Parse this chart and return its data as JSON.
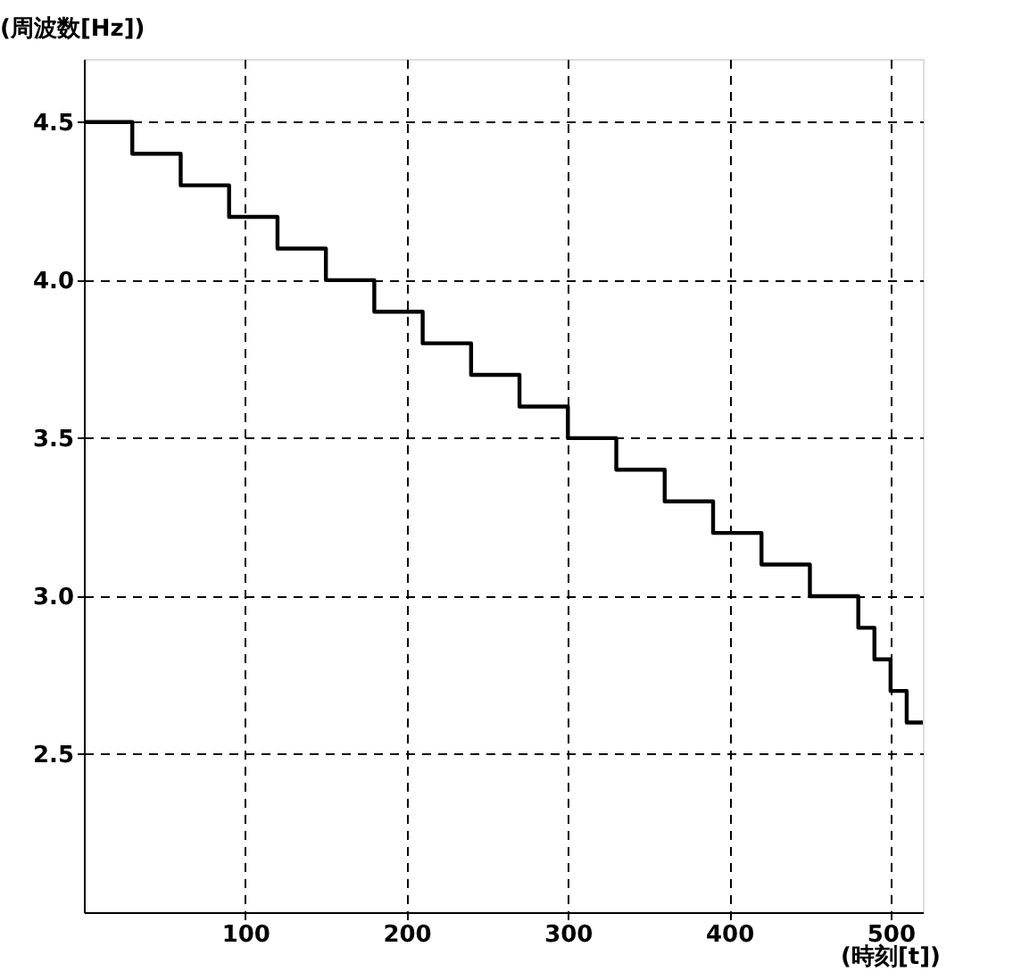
{
  "chart_data": {
    "type": "step",
    "xlabel": "(時刻[t])",
    "ylabel": "(周波数[Hz])",
    "x": [
      0,
      30,
      60,
      90,
      120,
      150,
      180,
      210,
      240,
      270,
      300,
      330,
      360,
      390,
      420,
      450,
      480,
      490,
      500,
      510,
      520
    ],
    "series": [
      {
        "color": "#000000",
        "values": [
          4.5,
          4.4,
          4.3,
          4.2,
          4.1,
          4.0,
          3.9,
          3.8,
          3.7,
          3.6,
          3.5,
          3.4,
          3.3,
          3.2,
          3.1,
          3.0,
          2.9,
          2.8,
          2.7,
          2.6,
          2.6
        ]
      }
    ],
    "xlim": [
      0,
      520
    ],
    "ylim": [
      2.0,
      4.7
    ],
    "xticks": [
      100,
      200,
      300,
      400,
      500
    ],
    "yticks": [
      {
        "value": 2.5,
        "label": "2.5"
      },
      {
        "value": 3,
        "label": "3.0"
      },
      {
        "value": 3.5,
        "label": "3.5"
      },
      {
        "value": 4,
        "label": "4.0"
      },
      {
        "value": 4.5,
        "label": "4.5"
      }
    ],
    "grid": true,
    "line_style": "solid"
  }
}
